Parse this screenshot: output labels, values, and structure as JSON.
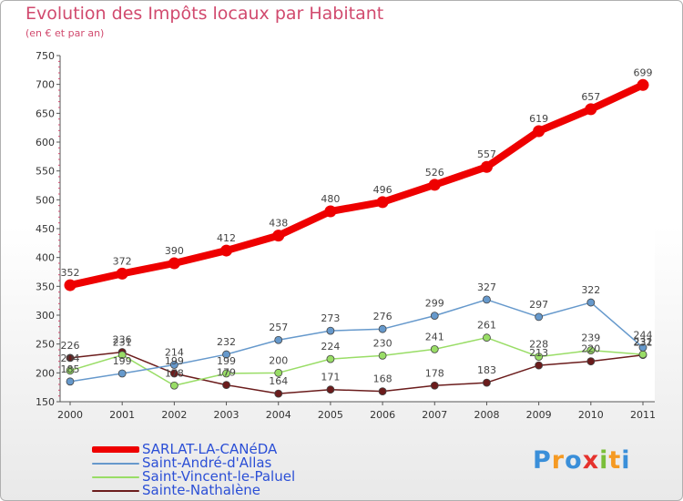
{
  "chart_data": {
    "type": "line",
    "title": "Evolution des Impôts locaux par Habitant",
    "subtitle": "(en € et par an)",
    "x": [
      "2000",
      "2001",
      "2002",
      "2003",
      "2004",
      "2005",
      "2006",
      "2007",
      "2008",
      "2009",
      "2010",
      "2011"
    ],
    "ylim": [
      150,
      750
    ],
    "yticks": [
      150,
      200,
      250,
      300,
      350,
      400,
      450,
      500,
      550,
      600,
      650,
      700,
      750
    ],
    "grid": false,
    "legend_position": "bottom-left",
    "series": [
      {
        "name": "SARLAT-LA-CANéDA",
        "color": "#ee0000",
        "values": [
          352,
          372,
          390,
          412,
          438,
          480,
          496,
          526,
          557,
          619,
          657,
          699
        ],
        "labels": [
          "352",
          "372",
          "390",
          "412",
          "438",
          "480",
          "496",
          "526",
          "557",
          "619",
          "657",
          "699"
        ]
      },
      {
        "name": "Saint-André-d'Allas",
        "color": "#6699cc",
        "values": [
          185,
          199,
          214,
          232,
          257,
          273,
          276,
          299,
          327,
          297,
          322,
          244
        ],
        "labels": [
          "185",
          "199",
          "214",
          "232",
          "257",
          "273",
          "276",
          "299",
          "327",
          "297",
          "322",
          "244"
        ]
      },
      {
        "name": "Saint-Vincent-le-Paluel",
        "color": "#99dd66",
        "values": [
          204,
          231,
          178,
          199,
          200,
          224,
          230,
          241,
          261,
          228,
          239,
          232
        ],
        "labels": [
          "204",
          "231",
          "178",
          "199",
          "200",
          "224",
          "230",
          "241",
          "261",
          "228",
          "239",
          "232"
        ]
      },
      {
        "name": "Sainte-Nathalène",
        "color": "#6b1c1c",
        "values": [
          226,
          236,
          199,
          179,
          164,
          171,
          168,
          178,
          183,
          213,
          220,
          231
        ],
        "labels": [
          "226",
          "236",
          "199",
          "179",
          "164",
          "171",
          "168",
          "178",
          "183",
          "213",
          "220",
          "231"
        ]
      }
    ]
  },
  "logo": {
    "text": "Proxiti"
  }
}
